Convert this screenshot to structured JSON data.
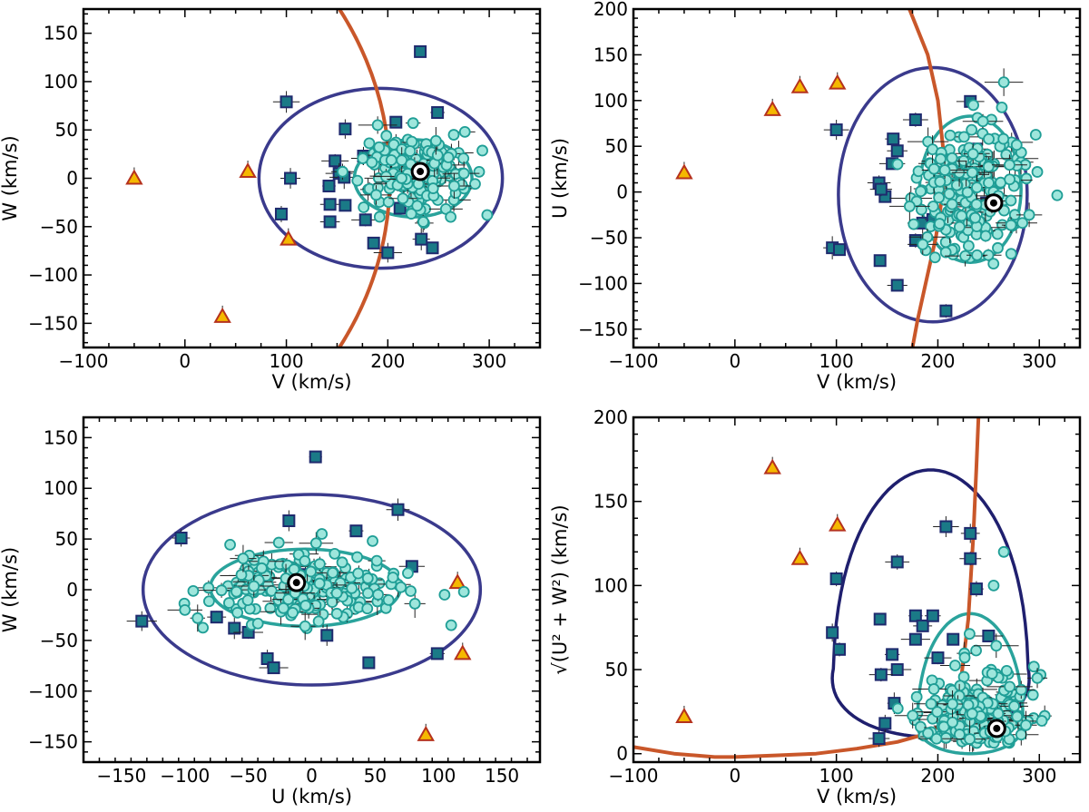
{
  "figure": {
    "description_labels": {
      "kms": "(km/s)",
      "V": "V",
      "U": "U",
      "W": "W",
      "sqrt": "√",
      "sqrt_expr": "U² + W²"
    }
  },
  "chart_data": [
    {
      "id": "panel-vw",
      "type": "scatter",
      "title": "",
      "xlabel": "V (km/s)",
      "ylabel": "W (km/s)",
      "xlim": [
        -100,
        350
      ],
      "ylim": [
        -175,
        175
      ],
      "xticks": [
        -100,
        0,
        100,
        200,
        300
      ],
      "yticks": [
        -150,
        -100,
        -50,
        0,
        50,
        100,
        150
      ],
      "series": [
        {
          "name": "triangles",
          "marker": "triangle",
          "color": "#f5b800",
          "edge": "#b5321d",
          "points": [
            [
              -50,
              0
            ],
            [
              62,
              7
            ],
            [
              102,
              -63
            ],
            [
              37,
              -143
            ]
          ]
        },
        {
          "name": "squares",
          "marker": "square",
          "color": "#1a7a87",
          "edge": "#1f2a6e",
          "points": [
            [
              232,
              131
            ],
            [
              100,
              79
            ],
            [
              249,
              68
            ],
            [
              208,
              58
            ],
            [
              158,
              51
            ],
            [
              176,
              23
            ],
            [
              148,
              18
            ],
            [
              152,
              5
            ],
            [
              157,
              1
            ],
            [
              104,
              0
            ],
            [
              142,
              -8
            ],
            [
              143,
              -27
            ],
            [
              158,
              -28
            ],
            [
              212,
              -31
            ],
            [
              95,
              -37
            ],
            [
              143,
              -45
            ],
            [
              178,
              -43
            ],
            [
              186,
              -67
            ],
            [
              233,
              -63
            ],
            [
              244,
              -72
            ],
            [
              200,
              -77
            ]
          ]
        },
        {
          "name": "circles",
          "marker": "circle",
          "color": "#9ee6dc",
          "edge": "#1f9e96",
          "center": [
            225,
            5
          ],
          "spread": [
            26,
            17
          ],
          "count": 210,
          "extra": [
            [
              190,
              55
            ],
            [
              265,
              45
            ],
            [
              298,
              -38
            ],
            [
              275,
              5
            ],
            [
              262,
              -40
            ],
            [
              235,
              -45
            ]
          ]
        },
        {
          "name": "sun",
          "marker": "sun",
          "points": [
            [
              232,
              7
            ]
          ]
        }
      ],
      "ellipses": [
        {
          "color": "#3a3a8c",
          "center": [
            193,
            0
          ],
          "radii": [
            120,
            93
          ]
        },
        {
          "color": "#2aa39c",
          "center": [
            225,
            0
          ],
          "radii": [
            58,
            40
          ]
        }
      ],
      "curves": [
        {
          "color": "#c9572a",
          "kind": "arc",
          "center": [
            -130,
            0
          ],
          "radius": 332
        }
      ]
    },
    {
      "id": "panel-vu",
      "type": "scatter",
      "title": "",
      "xlabel": "V (km/s)",
      "ylabel": "U (km/s)",
      "xlim": [
        -100,
        340
      ],
      "ylim": [
        -170,
        200
      ],
      "xticks": [
        -100,
        0,
        100,
        200,
        300
      ],
      "yticks": [
        -150,
        -100,
        -50,
        0,
        50,
        100,
        150,
        200
      ],
      "series": [
        {
          "name": "triangles",
          "marker": "triangle",
          "color": "#f5b800",
          "edge": "#b5321d",
          "points": [
            [
              -50,
              21
            ],
            [
              37,
              90
            ],
            [
              64,
              115
            ],
            [
              101,
              119
            ]
          ]
        },
        {
          "name": "squares",
          "marker": "square",
          "color": "#1a7a87",
          "edge": "#1f2a6e",
          "points": [
            [
              100,
              68
            ],
            [
              232,
              99
            ],
            [
              178,
              79
            ],
            [
              156,
              58
            ],
            [
              160,
              45
            ],
            [
              155,
              31
            ],
            [
              210,
              35
            ],
            [
              142,
              10
            ],
            [
              148,
              -5
            ],
            [
              238,
              47
            ],
            [
              144,
              3
            ],
            [
              248,
              -12
            ],
            [
              185,
              -34
            ],
            [
              195,
              -30
            ],
            [
              96,
              -61
            ],
            [
              103,
              -63
            ],
            [
              143,
              -75
            ],
            [
              178,
              -53
            ],
            [
              160,
              -102
            ],
            [
              208,
              -130
            ]
          ]
        },
        {
          "name": "circles",
          "marker": "circle",
          "color": "#9ee6dc",
          "edge": "#1f9e96",
          "center": [
            232,
            5
          ],
          "spread": [
            27,
            38
          ],
          "count": 210,
          "extra": [
            [
              265,
              120
            ],
            [
              298,
              22
            ],
            [
              235,
              95
            ],
            [
              290,
              -25
            ]
          ]
        },
        {
          "name": "sun",
          "marker": "sun",
          "points": [
            [
              255,
              -12
            ]
          ]
        }
      ],
      "ellipses": [
        {
          "color": "#3a3a8c",
          "center": [
            195,
            -3
          ],
          "radii": [
            93,
            139
          ]
        },
        {
          "color": "#2aa39c",
          "center": [
            232,
            3
          ],
          "radii": [
            50,
            80
          ]
        }
      ],
      "curves": [
        {
          "color": "#c9572a",
          "kind": "steep",
          "points": [
            [
              172,
              200
            ],
            [
              190,
              150
            ],
            [
              200,
              100
            ],
            [
              205,
              50
            ],
            [
              205,
              0
            ],
            [
              198,
              -50
            ],
            [
              188,
              -100
            ],
            [
              180,
              -140
            ],
            [
              175,
              -170
            ]
          ]
        }
      ]
    },
    {
      "id": "panel-uw",
      "type": "scatter",
      "title": "",
      "xlabel": "U (km/s)",
      "ylabel": "W (km/s)",
      "xlim": [
        -180,
        180
      ],
      "ylim": [
        -170,
        170
      ],
      "xticks": [
        -150,
        -100,
        -50,
        0,
        50,
        100,
        150
      ],
      "yticks": [
        -150,
        -100,
        -50,
        0,
        50,
        100,
        150
      ],
      "series": [
        {
          "name": "triangles",
          "marker": "triangle",
          "color": "#f5b800",
          "edge": "#b5321d",
          "points": [
            [
              21,
              0
            ],
            [
              115,
              7
            ],
            [
              119,
              -63
            ],
            [
              90,
              -143
            ]
          ]
        },
        {
          "name": "squares",
          "marker": "square",
          "color": "#1a7a87",
          "edge": "#1f2a6e",
          "points": [
            [
              3,
              131
            ],
            [
              68,
              79
            ],
            [
              -103,
              51
            ],
            [
              -18,
              68
            ],
            [
              35,
              58
            ],
            [
              -134,
              -31
            ],
            [
              -35,
              -68
            ],
            [
              -30,
              -77
            ],
            [
              45,
              -72
            ],
            [
              99,
              -63
            ],
            [
              12,
              -45
            ],
            [
              -61,
              -38
            ],
            [
              -50,
              -42
            ],
            [
              79,
              23
            ],
            [
              28,
              3
            ],
            [
              -5,
              15
            ],
            [
              -75,
              -27
            ]
          ]
        },
        {
          "name": "circles",
          "marker": "circle",
          "color": "#9ee6dc",
          "edge": "#1f9e96",
          "center": [
            -8,
            2
          ],
          "spread": [
            38,
            17
          ],
          "count": 220,
          "extra": [
            [
              48,
              48
            ],
            [
              8,
              55
            ],
            [
              -90,
              -28
            ],
            [
              110,
              -35
            ],
            [
              120,
              -2
            ],
            [
              -100,
              -20
            ]
          ]
        },
        {
          "name": "sun",
          "marker": "sun",
          "points": [
            [
              -12,
              7
            ]
          ]
        }
      ],
      "ellipses": [
        {
          "color": "#3a3a8c",
          "center": [
            0,
            0
          ],
          "radii": [
            133,
            94
          ]
        },
        {
          "color": "#2aa39c",
          "center": [
            -5,
            2
          ],
          "radii": [
            75,
            38
          ]
        }
      ],
      "curves": []
    },
    {
      "id": "panel-toomre",
      "type": "scatter",
      "title": "",
      "xlabel": "V (km/s)",
      "ylabel": "√(U² + W²) (km/s)",
      "xlim": [
        -100,
        340
      ],
      "ylim": [
        -5,
        200
      ],
      "xticks": [
        -100,
        0,
        100,
        200,
        300
      ],
      "yticks": [
        0,
        50,
        100,
        150,
        200
      ],
      "series": [
        {
          "name": "triangles",
          "marker": "triangle",
          "color": "#f5b800",
          "edge": "#b5321d",
          "points": [
            [
              -50,
              22
            ],
            [
              37,
              170
            ],
            [
              64,
              116
            ],
            [
              101,
              136
            ]
          ]
        },
        {
          "name": "squares",
          "marker": "square",
          "color": "#1a7a87",
          "edge": "#1f2a6e",
          "points": [
            [
              208,
              135
            ],
            [
              232,
              131
            ],
            [
              232,
              116
            ],
            [
              100,
              104
            ],
            [
              160,
              114
            ],
            [
              238,
              98
            ],
            [
              96,
              72
            ],
            [
              103,
              62
            ],
            [
              143,
              80
            ],
            [
              178,
              82
            ],
            [
              185,
              76
            ],
            [
              195,
              82
            ],
            [
              155,
              59
            ],
            [
              160,
              50
            ],
            [
              178,
              68
            ],
            [
              215,
              68
            ],
            [
              250,
              70
            ],
            [
              144,
              47
            ],
            [
              157,
              30
            ],
            [
              148,
              18
            ],
            [
              142,
              9
            ],
            [
              200,
              57
            ]
          ]
        },
        {
          "name": "circles",
          "marker": "circle",
          "color": "#9ee6dc",
          "edge": "#1f9e96",
          "center": [
            238,
            35
          ],
          "spread": [
            25,
            22
          ],
          "count": 230,
          "extra": [
            [
              265,
              120
            ],
            [
              298,
              45
            ],
            [
              255,
              100
            ]
          ]
        },
        {
          "name": "sun",
          "marker": "sun",
          "points": [
            [
              258,
              15
            ]
          ]
        }
      ],
      "ellipses": [],
      "curves": [
        {
          "color": "#1f1f6e",
          "kind": "toomre-outer"
        },
        {
          "color": "#2aa39c",
          "kind": "toomre-inner"
        },
        {
          "color": "#c9572a",
          "kind": "orange-floor",
          "points": [
            [
              -100,
              4
            ],
            [
              -60,
              0
            ],
            [
              -20,
              -2
            ],
            [
              0,
              -2
            ],
            [
              40,
              -1
            ],
            [
              80,
              0
            ],
            [
              120,
              3
            ],
            [
              160,
              7
            ],
            [
              190,
              12
            ],
            [
              210,
              20
            ],
            [
              222,
              40
            ],
            [
              230,
              80
            ],
            [
              235,
              130
            ],
            [
              238,
              170
            ],
            [
              240,
              200
            ]
          ]
        }
      ]
    }
  ]
}
